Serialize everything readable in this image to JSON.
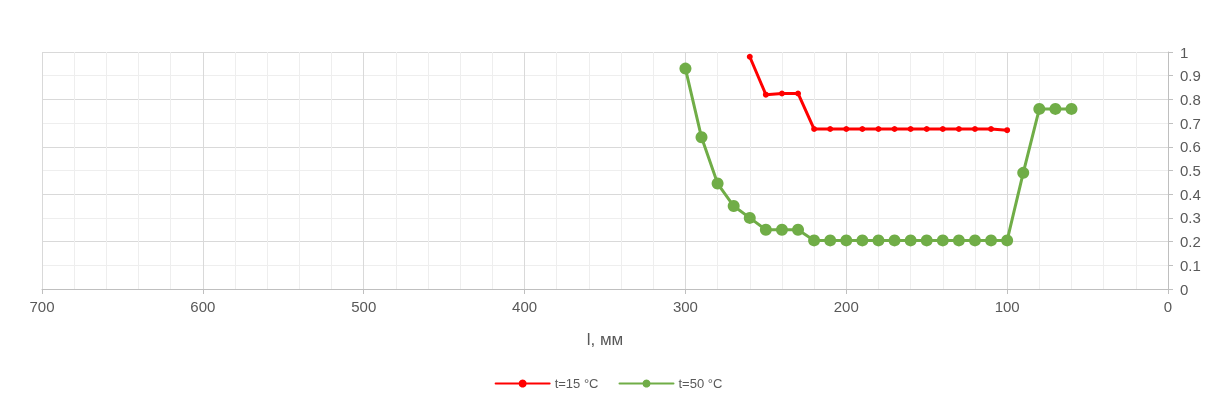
{
  "chart_data": {
    "type": "line",
    "xlabel": "l, мм",
    "x": [
      300,
      290,
      280,
      270,
      260,
      250,
      240,
      230,
      220,
      210,
      200,
      190,
      180,
      170,
      160,
      150,
      140,
      130,
      120,
      110,
      100,
      90,
      80,
      70,
      60
    ],
    "series": [
      {
        "name": "t=15 °C",
        "color": "#ff0000",
        "x": [
          260,
          250,
          240,
          230,
          220,
          210,
          200,
          190,
          180,
          170,
          160,
          150,
          140,
          130,
          120,
          110,
          100
        ],
        "values": [
          0.98,
          0.82,
          0.825,
          0.825,
          0.675,
          0.675,
          0.675,
          0.675,
          0.675,
          0.675,
          0.675,
          0.675,
          0.675,
          0.675,
          0.675,
          0.675,
          0.67
        ]
      },
      {
        "name": "t=50 °C",
        "color": "#70ad47",
        "values": [
          0.93,
          0.64,
          0.445,
          0.35,
          0.3,
          0.25,
          0.25,
          0.25,
          0.205,
          0.205,
          0.205,
          0.205,
          0.205,
          0.205,
          0.205,
          0.205,
          0.205,
          0.205,
          0.205,
          0.205,
          0.205,
          0.49,
          0.76,
          0.76,
          0.76
        ]
      }
    ],
    "xlim": [
      700,
      0
    ],
    "xticks": [
      700,
      600,
      500,
      400,
      300,
      200,
      100,
      0
    ],
    "ylim": [
      0,
      1
    ],
    "yticks": [
      0,
      0.1,
      0.2,
      0.3,
      0.4,
      0.5,
      0.6,
      0.7,
      0.8,
      0.9,
      1
    ],
    "grid": true,
    "legend": "bottom",
    "marker": "circle",
    "line_style": "solid"
  }
}
